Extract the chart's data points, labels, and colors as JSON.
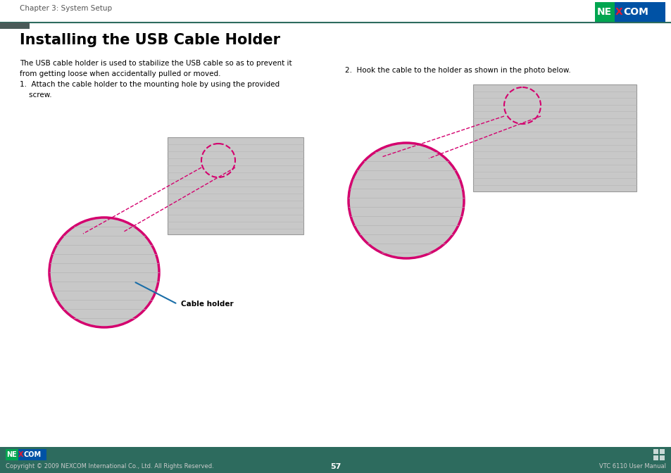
{
  "bg_color": "#ffffff",
  "teal_color": "#2d6b5e",
  "dark_accent_color": "#4a5a58",
  "title": "Installing the USB Cable Holder",
  "title_fontsize": 15,
  "chapter_text": "Chapter 3: System Setup",
  "chapter_fontsize": 7.5,
  "body_text1": "The USB cable holder is used to stabilize the USB cable so as to prevent it\nfrom getting loose when accidentally pulled or moved.",
  "step1_text": "1.  Attach the cable holder to the mounting hole by using the provided\n    screw.",
  "step2_text": "2.  Hook the cable to the holder as shown in the photo below.",
  "cable_holder_label": "Cable holder",
  "footer_copyright": "Copyright © 2009 NEXCOM International Co., Ltd. All Rights Reserved.",
  "footer_page": "57",
  "footer_manual": "VTC 6110 User Manual",
  "footer_bg": "#2d6b5e",
  "nexcom_green": "#00a550",
  "nexcom_blue": "#0052a5",
  "nexcom_red": "#e8192c",
  "circle_color": "#d4006e",
  "dashed_line_color": "#d4006e",
  "annotation_line_color": "#1a6ea8",
  "text_color": "#000000",
  "body_fontsize": 7.5,
  "step_fontsize": 7.5,
  "label_fontsize": 7.5,
  "photo_bg": "#c8c8c8",
  "photo_line": "#b5b5b5"
}
